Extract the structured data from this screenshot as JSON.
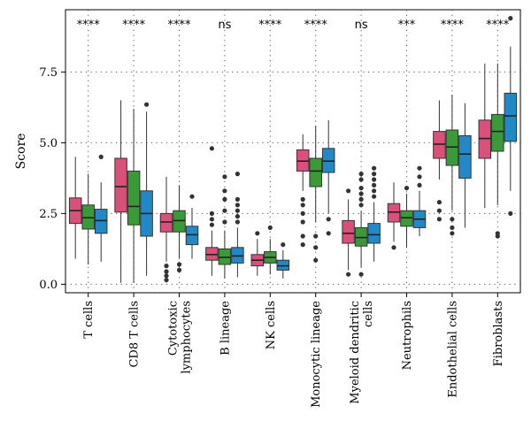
{
  "chart_data": {
    "type": "box",
    "ylabel": "Score",
    "ylim": [
      -0.3,
      9.7
    ],
    "yticks": [
      0.0,
      2.5,
      5.0,
      7.5
    ],
    "ytick_labels": [
      "0.0",
      "2.5",
      "5.0",
      "7.5"
    ],
    "categories": [
      {
        "label": [
          "T cells"
        ],
        "significance": "****",
        "boxes": [
          {
            "color": "#d9507a",
            "min": 0.9,
            "q1": 2.15,
            "median": 2.6,
            "q3": 3.05,
            "max": 4.5,
            "outliers": []
          },
          {
            "color": "#3a9a38",
            "min": 0.7,
            "q1": 1.95,
            "median": 2.35,
            "q3": 2.8,
            "max": 3.9,
            "outliers": []
          },
          {
            "color": "#2289c9",
            "min": 0.8,
            "q1": 1.8,
            "median": 2.25,
            "q3": 2.65,
            "max": 3.6,
            "outliers": [
              4.5
            ]
          }
        ]
      },
      {
        "label": [
          "CD8 T cells"
        ],
        "significance": "****",
        "boxes": [
          {
            "color": "#d9507a",
            "min": 0.05,
            "q1": 2.55,
            "median": 3.45,
            "q3": 4.45,
            "max": 6.5,
            "outliers": []
          },
          {
            "color": "#3a9a38",
            "min": 0.05,
            "q1": 2.1,
            "median": 2.75,
            "q3": 4.0,
            "max": 6.2,
            "outliers": []
          },
          {
            "color": "#2289c9",
            "min": 0.3,
            "q1": 1.7,
            "median": 2.5,
            "q3": 3.3,
            "max": 6.1,
            "outliers": [
              6.35
            ]
          }
        ]
      },
      {
        "label": [
          "Cytotoxic",
          "lymphocytes"
        ],
        "significance": "****",
        "boxes": [
          {
            "color": "#d9507a",
            "min": 0.8,
            "q1": 1.85,
            "median": 2.2,
            "q3": 2.5,
            "max": 3.8,
            "outliers": [
              0.65,
              0.45,
              0.3,
              0.15
            ]
          },
          {
            "color": "#3a9a38",
            "min": 0.9,
            "q1": 1.85,
            "median": 2.25,
            "q3": 2.6,
            "max": 3.5,
            "outliers": [
              0.7,
              0.5
            ]
          },
          {
            "color": "#2289c9",
            "min": 0.9,
            "q1": 1.4,
            "median": 1.75,
            "q3": 2.05,
            "max": 2.7,
            "outliers": [
              3.1
            ]
          }
        ]
      },
      {
        "label": [
          "B lineage"
        ],
        "significance": "ns",
        "boxes": [
          {
            "color": "#d9507a",
            "min": 0.3,
            "q1": 0.85,
            "median": 1.05,
            "q3": 1.3,
            "max": 1.9,
            "outliers": [
              2.1,
              2.3,
              2.5,
              4.8
            ]
          },
          {
            "color": "#3a9a38",
            "min": 0.2,
            "q1": 0.7,
            "median": 0.95,
            "q3": 1.25,
            "max": 1.9,
            "outliers": [
              2.2,
              2.6,
              3.0,
              3.3,
              3.8
            ]
          },
          {
            "color": "#2289c9",
            "min": 0.25,
            "q1": 0.75,
            "median": 1.0,
            "q3": 1.3,
            "max": 2.0,
            "outliers": [
              2.2,
              2.4,
              2.6,
              2.8,
              3.0,
              3.9
            ]
          }
        ]
      },
      {
        "label": [
          "NK cells"
        ],
        "significance": "****",
        "boxes": [
          {
            "color": "#d9507a",
            "min": 0.3,
            "q1": 0.65,
            "median": 0.85,
            "q3": 1.05,
            "max": 1.6,
            "outliers": [
              1.8
            ]
          },
          {
            "color": "#3a9a38",
            "min": 0.35,
            "q1": 0.75,
            "median": 0.95,
            "q3": 1.15,
            "max": 1.6,
            "outliers": [
              2.0
            ]
          },
          {
            "color": "#2289c9",
            "min": 0.2,
            "q1": 0.5,
            "median": 0.65,
            "q3": 0.85,
            "max": 1.2,
            "outliers": [
              1.4
            ]
          }
        ]
      },
      {
        "label": [
          "Monocytic lineage"
        ],
        "significance": "****",
        "boxes": [
          {
            "color": "#d9507a",
            "min": 3.3,
            "q1": 4.0,
            "median": 4.35,
            "q3": 4.75,
            "max": 5.3,
            "outliers": [
              1.4,
              1.7,
              2.2,
              2.5,
              2.8,
              3.0
            ]
          },
          {
            "color": "#3a9a38",
            "min": 2.2,
            "q1": 3.45,
            "median": 4.0,
            "q3": 4.45,
            "max": 5.6,
            "outliers": [
              0.85,
              1.3,
              1.7
            ]
          },
          {
            "color": "#2289c9",
            "min": 2.5,
            "q1": 3.95,
            "median": 4.35,
            "q3": 4.8,
            "max": 5.8,
            "outliers": [
              1.8,
              2.3
            ]
          }
        ]
      },
      {
        "label": [
          "Myeloid dendritic",
          "cells"
        ],
        "significance": "ns",
        "boxes": [
          {
            "color": "#d9507a",
            "min": 0.5,
            "q1": 1.45,
            "median": 1.8,
            "q3": 2.25,
            "max": 3.0,
            "outliers": [
              0.35,
              3.3
            ]
          },
          {
            "color": "#3a9a38",
            "min": 0.6,
            "q1": 1.35,
            "median": 1.65,
            "q3": 2.0,
            "max": 2.6,
            "outliers": [
              2.8,
              3.0,
              3.2,
              3.4,
              3.7,
              3.9,
              0.35
            ]
          },
          {
            "color": "#2289c9",
            "min": 0.8,
            "q1": 1.45,
            "median": 1.75,
            "q3": 2.15,
            "max": 2.9,
            "outliers": [
              3.1,
              3.3,
              3.5,
              3.7,
              3.9,
              4.1
            ]
          }
        ]
      },
      {
        "label": [
          "Neutrophils"
        ],
        "significance": "***",
        "boxes": [
          {
            "color": "#d9507a",
            "min": 1.5,
            "q1": 2.2,
            "median": 2.55,
            "q3": 2.85,
            "max": 3.6,
            "outliers": [
              1.3
            ]
          },
          {
            "color": "#3a9a38",
            "min": 1.3,
            "q1": 2.05,
            "median": 2.35,
            "q3": 2.6,
            "max": 3.2,
            "outliers": [
              3.4
            ]
          },
          {
            "color": "#2289c9",
            "min": 1.7,
            "q1": 2.0,
            "median": 2.3,
            "q3": 2.6,
            "max": 3.3,
            "outliers": [
              3.5,
              3.8,
              4.1
            ]
          }
        ]
      },
      {
        "label": [
          "Endothelial cells"
        ],
        "significance": "****",
        "boxes": [
          {
            "color": "#d9507a",
            "min": 3.7,
            "q1": 4.45,
            "median": 4.95,
            "q3": 5.4,
            "max": 6.5,
            "outliers": [
              2.3,
              2.6,
              2.9
            ]
          },
          {
            "color": "#3a9a38",
            "min": 2.6,
            "q1": 4.2,
            "median": 4.85,
            "q3": 5.45,
            "max": 6.7,
            "outliers": [
              1.8,
              2.0,
              2.3
            ]
          },
          {
            "color": "#2289c9",
            "min": 2.0,
            "q1": 3.75,
            "median": 4.6,
            "q3": 5.25,
            "max": 6.4,
            "outliers": []
          }
        ]
      },
      {
        "label": [
          "Fibroblasts"
        ],
        "significance": "****",
        "boxes": [
          {
            "color": "#d9507a",
            "min": 2.7,
            "q1": 4.45,
            "median": 5.15,
            "q3": 5.8,
            "max": 7.8,
            "outliers": []
          },
          {
            "color": "#3a9a38",
            "min": 2.8,
            "q1": 4.7,
            "median": 5.4,
            "q3": 6.0,
            "max": 7.8,
            "outliers": [
              1.7,
              1.8
            ]
          },
          {
            "color": "#2289c9",
            "min": 3.3,
            "q1": 5.05,
            "median": 5.95,
            "q3": 6.75,
            "max": 8.4,
            "outliers": [
              2.5,
              9.4
            ]
          }
        ]
      }
    ]
  }
}
